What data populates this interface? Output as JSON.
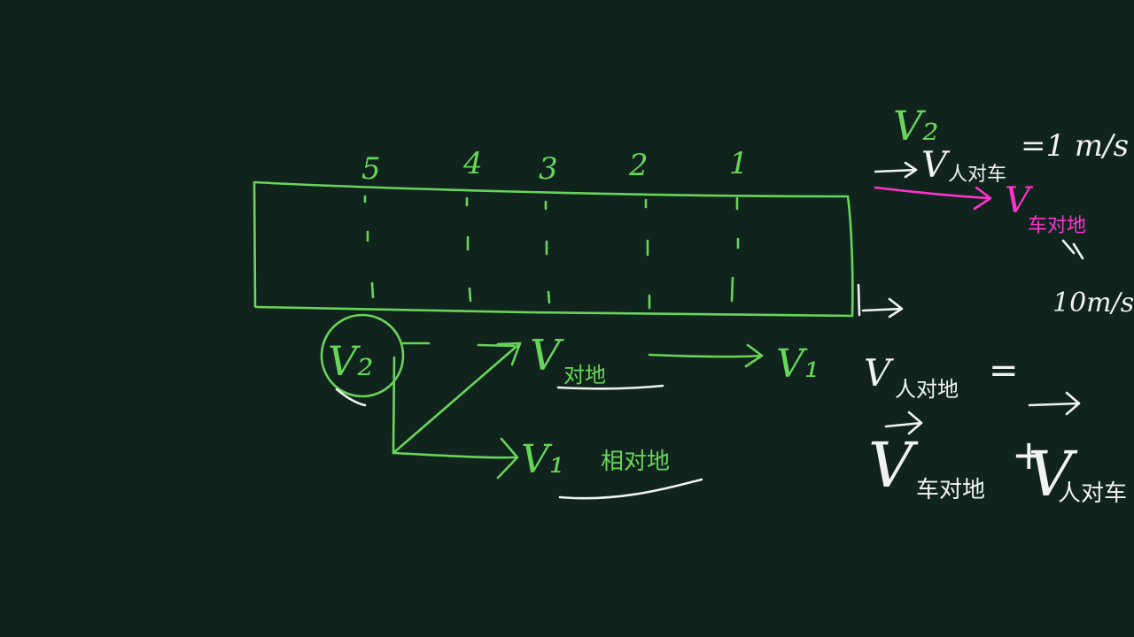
{
  "colors": {
    "background": "#10241d",
    "chalk_green": "#69d45a",
    "chalk_white": "#f2f2f2",
    "chalk_magenta": "#ff33cc"
  },
  "segment_numbers": [
    "5",
    "4",
    "3",
    "2",
    "1"
  ],
  "labels": {
    "v2_circled": "V₂",
    "v_relative_ground": "V",
    "relative_ground_sub": "对地",
    "v1_top": "V₁",
    "v1_bottom": "V₁",
    "v1_sub": "相对地"
  },
  "right_notes": {
    "v2": "V₂",
    "v_person_car": "V",
    "person_car_sub": "人对车",
    "equals_1ms": "=1 m/s",
    "v_car_ground": "V",
    "car_ground_sub": "车对地",
    "equals_mark": "=",
    "ten_ms": "10m/s",
    "v_person_ground": "V",
    "person_ground_sub": "人对地",
    "equals": "=",
    "vec_v1": "V",
    "vec_v1_sub": "车对地",
    "plus": "+",
    "vec_v2": "V",
    "vec_v2_sub": "人对车"
  }
}
